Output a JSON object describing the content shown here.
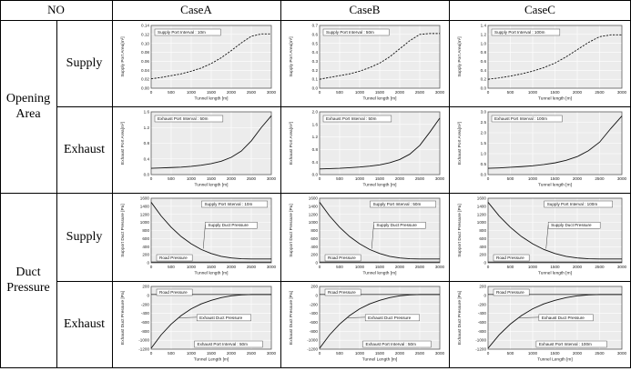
{
  "table": {
    "header": {
      "no": "NO",
      "cases": [
        "CaseA",
        "CaseB",
        "CaseC"
      ]
    },
    "groups": [
      {
        "label_lines": [
          "Opening",
          "Area"
        ],
        "subrows": [
          "Supply",
          "Exhaust"
        ]
      },
      {
        "label_lines": [
          "Duct",
          "Pressure"
        ],
        "subrows": [
          "Supply",
          "Exhaust"
        ]
      }
    ]
  },
  "chart_data": [
    {
      "type": "line",
      "case": "CaseA",
      "row": "Opening Area / Supply",
      "style": "dashed",
      "xlabel": "Tunnel length [m]",
      "ylabel": "Supply Port Area[m²]",
      "xlim": [
        0,
        3000
      ],
      "ylim": [
        0,
        0.14
      ],
      "xticks": [
        "0",
        "500",
        "1000",
        "1500",
        "2000",
        "2500",
        "3000"
      ],
      "yticks": [
        "0.00",
        "0.02",
        "0.04",
        "0.06",
        "0.08",
        "0.10",
        "0.12",
        "0.14"
      ],
      "annotations": [
        "Supply Port Interval : 10m"
      ],
      "series": [
        {
          "x": [
            0,
            250,
            500,
            750,
            1000,
            1250,
            1500,
            1750,
            2000,
            2250,
            2500,
            2750,
            3000
          ],
          "y": [
            0.021,
            0.024,
            0.028,
            0.032,
            0.038,
            0.045,
            0.055,
            0.068,
            0.084,
            0.101,
            0.116,
            0.121,
            0.121
          ]
        }
      ]
    },
    {
      "type": "line",
      "case": "CaseB",
      "row": "Opening Area / Supply",
      "style": "dashed",
      "xlabel": "Tunnel length [m]",
      "ylabel": "Supply Port Area[m²]",
      "xlim": [
        0,
        3000
      ],
      "ylim": [
        0,
        0.7
      ],
      "xticks": [
        "0",
        "500",
        "1000",
        "1500",
        "2000",
        "2500",
        "3000"
      ],
      "yticks": [
        "0.0",
        "0.1",
        "0.2",
        "0.3",
        "0.4",
        "0.5",
        "0.6",
        "0.7"
      ],
      "annotations": [
        "Supply Port Interval : 50m"
      ],
      "series": [
        {
          "x": [
            0,
            250,
            500,
            750,
            1000,
            1250,
            1500,
            1750,
            2000,
            2250,
            2500,
            2750,
            3000
          ],
          "y": [
            0.1,
            0.12,
            0.14,
            0.16,
            0.19,
            0.23,
            0.28,
            0.35,
            0.44,
            0.53,
            0.6,
            0.61,
            0.61
          ]
        }
      ]
    },
    {
      "type": "line",
      "case": "CaseC",
      "row": "Opening Area / Supply",
      "style": "dashed",
      "xlabel": "Tunnel length [m]",
      "ylabel": "Supply Port Area[m²]",
      "xlim": [
        0,
        3000
      ],
      "ylim": [
        0,
        1.4
      ],
      "xticks": [
        "0",
        "500",
        "1000",
        "1500",
        "2000",
        "2500",
        "3000"
      ],
      "yticks": [
        "0.0",
        "0.2",
        "0.4",
        "0.6",
        "0.8",
        "1.0",
        "1.2",
        "1.4"
      ],
      "annotations": [
        "Supply Port Interval : 100m"
      ],
      "series": [
        {
          "x": [
            0,
            250,
            500,
            750,
            1000,
            1250,
            1500,
            1750,
            2000,
            2250,
            2500,
            2750,
            3000
          ],
          "y": [
            0.2,
            0.23,
            0.27,
            0.32,
            0.38,
            0.46,
            0.56,
            0.7,
            0.86,
            1.02,
            1.15,
            1.19,
            1.19
          ]
        }
      ]
    },
    {
      "type": "line",
      "case": "CaseA",
      "row": "Opening Area / Exhaust",
      "style": "solid",
      "xlabel": "Tunnel length [m]",
      "ylabel": "Exhaust Port Area[m²]",
      "xlim": [
        0,
        3000
      ],
      "ylim": [
        0,
        1.6
      ],
      "xticks": [
        "0",
        "500",
        "1000",
        "1500",
        "2000",
        "2500",
        "3000"
      ],
      "yticks": [
        "0.0",
        "0.4",
        "0.8",
        "1.2",
        "1.6"
      ],
      "annotations": [
        "Exhaust Port Interval : 50m"
      ],
      "series": [
        {
          "x": [
            0,
            250,
            500,
            750,
            1000,
            1250,
            1500,
            1750,
            2000,
            2250,
            2500,
            2750,
            3000
          ],
          "y": [
            0.16,
            0.17,
            0.18,
            0.19,
            0.21,
            0.24,
            0.28,
            0.34,
            0.44,
            0.6,
            0.86,
            1.2,
            1.5
          ]
        }
      ]
    },
    {
      "type": "line",
      "case": "CaseB",
      "row": "Opening Area / Exhaust",
      "style": "solid",
      "xlabel": "Tunnel length [m]",
      "ylabel": "Exhaust Port Area[m²]",
      "xlim": [
        0,
        3000
      ],
      "ylim": [
        0,
        2.0
      ],
      "xticks": [
        "0",
        "500",
        "1000",
        "1500",
        "2000",
        "2500",
        "3000"
      ],
      "yticks": [
        "0.0",
        "0.4",
        "0.8",
        "1.2",
        "1.6",
        "2.0"
      ],
      "annotations": [
        "Exhaust Port Interval : 50m"
      ],
      "series": [
        {
          "x": [
            0,
            250,
            500,
            750,
            1000,
            1250,
            1500,
            1750,
            2000,
            2250,
            2500,
            2750,
            3000
          ],
          "y": [
            0.18,
            0.19,
            0.2,
            0.22,
            0.24,
            0.27,
            0.31,
            0.38,
            0.48,
            0.65,
            0.93,
            1.35,
            1.8
          ]
        }
      ]
    },
    {
      "type": "line",
      "case": "CaseC",
      "row": "Opening Area / Exhaust",
      "style": "solid",
      "xlabel": "Tunnel length [m]",
      "ylabel": "Exhaust Port Area[m²]",
      "xlim": [
        0,
        3000
      ],
      "ylim": [
        0,
        3.0
      ],
      "xticks": [
        "0",
        "500",
        "1000",
        "1500",
        "2000",
        "2500",
        "3000"
      ],
      "yticks": [
        "0.0",
        "0.5",
        "1.0",
        "1.5",
        "2.0",
        "2.5",
        "3.0"
      ],
      "annotations": [
        "Exhaust Port Interval : 100m"
      ],
      "series": [
        {
          "x": [
            0,
            250,
            500,
            750,
            1000,
            1250,
            1500,
            1750,
            2000,
            2250,
            2500,
            2750,
            3000
          ],
          "y": [
            0.3,
            0.32,
            0.35,
            0.38,
            0.42,
            0.48,
            0.56,
            0.68,
            0.86,
            1.14,
            1.55,
            2.2,
            2.8
          ]
        }
      ]
    },
    {
      "type": "line",
      "case": "CaseA",
      "row": "Duct Pressure / Supply",
      "style": "solid",
      "xlabel": "Tunnel length [m]",
      "ylabel": "Support Duct Pressure [Pa]",
      "xlim": [
        0,
        3000
      ],
      "ylim": [
        0,
        1600
      ],
      "xticks": [
        "0",
        "500",
        "1000",
        "1500",
        "2000",
        "2500",
        "3000"
      ],
      "yticks": [
        "0",
        "200",
        "400",
        "600",
        "800",
        "1000",
        "1200",
        "1400",
        "1600"
      ],
      "annotations": [
        "Supply Port Interval : 10m",
        "Supply Duct Pressure",
        "Road Pressure"
      ],
      "series": [
        {
          "name": "Supply Duct Pressure",
          "x": [
            0,
            250,
            500,
            750,
            1000,
            1250,
            1500,
            1750,
            2000,
            2250,
            2500,
            2750,
            3000
          ],
          "y": [
            1500,
            1160,
            880,
            650,
            470,
            330,
            230,
            160,
            120,
            100,
            95,
            95,
            95
          ]
        },
        {
          "name": "Road Pressure",
          "x": [
            0,
            3000
          ],
          "y": [
            20,
            20
          ]
        }
      ]
    },
    {
      "type": "line",
      "case": "CaseB",
      "row": "Duct Pressure / Supply",
      "style": "solid",
      "xlabel": "Tunnel length [m]",
      "ylabel": "Support Duct Pressure [Pa]",
      "xlim": [
        0,
        3000
      ],
      "ylim": [
        0,
        1600
      ],
      "xticks": [
        "0",
        "500",
        "1000",
        "1500",
        "2000",
        "2500",
        "3000"
      ],
      "yticks": [
        "0",
        "200",
        "400",
        "600",
        "800",
        "1000",
        "1200",
        "1400",
        "1600"
      ],
      "annotations": [
        "Supply Port Interval : 50m",
        "Supply Duct Pressure",
        "Road Pressure"
      ],
      "series": [
        {
          "name": "Supply Duct Pressure",
          "x": [
            0,
            250,
            500,
            750,
            1000,
            1250,
            1500,
            1750,
            2000,
            2250,
            2500,
            2750,
            3000
          ],
          "y": [
            1500,
            1160,
            880,
            650,
            470,
            330,
            230,
            160,
            120,
            100,
            95,
            95,
            95
          ]
        },
        {
          "name": "Road Pressure",
          "x": [
            0,
            3000
          ],
          "y": [
            20,
            20
          ]
        }
      ]
    },
    {
      "type": "line",
      "case": "CaseC",
      "row": "Duct Pressure / Supply",
      "style": "solid",
      "xlabel": "Tunnel length [m]",
      "ylabel": "Support Duct Pressure [Pa]",
      "xlim": [
        0,
        3000
      ],
      "ylim": [
        0,
        1600
      ],
      "xticks": [
        "0",
        "500",
        "1000",
        "1500",
        "2000",
        "2500",
        "3000"
      ],
      "yticks": [
        "0",
        "200",
        "400",
        "600",
        "800",
        "1000",
        "1200",
        "1400",
        "1600"
      ],
      "annotations": [
        "Supply Port Interval : 100m",
        "Supply Duct Pressure",
        "Road Pressure"
      ],
      "series": [
        {
          "name": "Supply Duct Pressure",
          "x": [
            0,
            250,
            500,
            750,
            1000,
            1250,
            1500,
            1750,
            2000,
            2250,
            2500,
            2750,
            3000
          ],
          "y": [
            1500,
            1160,
            880,
            650,
            470,
            330,
            230,
            160,
            120,
            100,
            95,
            95,
            95
          ]
        },
        {
          "name": "Road Pressure",
          "x": [
            0,
            3000
          ],
          "y": [
            20,
            20
          ]
        }
      ]
    },
    {
      "type": "line",
      "case": "CaseA",
      "row": "Duct Pressure / Exhaust",
      "style": "solid",
      "xlabel": "Tunnel Length [m]",
      "ylabel": "Exhaust Duct Pressure [Pa]",
      "xlim": [
        0,
        3000
      ],
      "ylim": [
        -1200,
        200
      ],
      "xticks": [
        "0",
        "500",
        "1000",
        "1500",
        "2000",
        "2500",
        "3000"
      ],
      "yticks": [
        "-1200",
        "-1000",
        "-800",
        "-600",
        "-400",
        "-200",
        "0",
        "200"
      ],
      "annotations": [
        "Road Pressure",
        "Exhaust Duct Pressure",
        "Exhaust Port Interval : 50m"
      ],
      "series": [
        {
          "name": "Exhaust Duct Pressure",
          "x": [
            0,
            250,
            500,
            750,
            1000,
            1250,
            1500,
            1750,
            2000,
            2250,
            2500,
            2750,
            3000
          ],
          "y": [
            -1180,
            -880,
            -640,
            -450,
            -300,
            -190,
            -110,
            -50,
            -10,
            10,
            20,
            20,
            20
          ]
        },
        {
          "name": "Road Pressure",
          "x": [
            0,
            3000
          ],
          "y": [
            20,
            20
          ]
        }
      ]
    },
    {
      "type": "line",
      "case": "CaseB",
      "row": "Duct Pressure / Exhaust",
      "style": "solid",
      "xlabel": "Tunnel Length [m]",
      "ylabel": "Exhaust Duct Pressure [Pa]",
      "xlim": [
        0,
        3000
      ],
      "ylim": [
        -1200,
        200
      ],
      "xticks": [
        "0",
        "500",
        "1000",
        "1500",
        "2000",
        "2500",
        "3000"
      ],
      "yticks": [
        "-1200",
        "-1000",
        "-800",
        "-600",
        "-400",
        "-200",
        "0",
        "200"
      ],
      "annotations": [
        "Road Pressure",
        "Exhaust Duct Pressure",
        "Exhaust Port Interval : 50m"
      ],
      "series": [
        {
          "name": "Exhaust Duct Pressure",
          "x": [
            0,
            250,
            500,
            750,
            1000,
            1250,
            1500,
            1750,
            2000,
            2250,
            2500,
            2750,
            3000
          ],
          "y": [
            -1180,
            -880,
            -640,
            -450,
            -300,
            -190,
            -110,
            -50,
            -10,
            10,
            20,
            20,
            20
          ]
        },
        {
          "name": "Road Pressure",
          "x": [
            0,
            3000
          ],
          "y": [
            20,
            20
          ]
        }
      ]
    },
    {
      "type": "line",
      "case": "CaseC",
      "row": "Duct Pressure / Exhaust",
      "style": "solid",
      "xlabel": "Tunnel Length [m]",
      "ylabel": "Exhaust Duct Pressure [Pa]",
      "xlim": [
        0,
        3000
      ],
      "ylim": [
        -1200,
        200
      ],
      "xticks": [
        "0",
        "500",
        "1000",
        "1500",
        "2000",
        "2500",
        "3000"
      ],
      "yticks": [
        "-1200",
        "-1000",
        "-800",
        "-600",
        "-400",
        "-200",
        "0",
        "200"
      ],
      "annotations": [
        "Road Pressure",
        "Exhaust Duct Pressure",
        "Exhaust Port Interval : 100m"
      ],
      "series": [
        {
          "name": "Exhaust Duct Pressure",
          "x": [
            0,
            250,
            500,
            750,
            1000,
            1250,
            1500,
            1750,
            2000,
            2250,
            2500,
            2750,
            3000
          ],
          "y": [
            -1180,
            -880,
            -640,
            -450,
            -300,
            -190,
            -110,
            -50,
            -10,
            10,
            20,
            20,
            20
          ]
        },
        {
          "name": "Road Pressure",
          "x": [
            0,
            3000
          ],
          "y": [
            20,
            20
          ]
        }
      ]
    }
  ]
}
